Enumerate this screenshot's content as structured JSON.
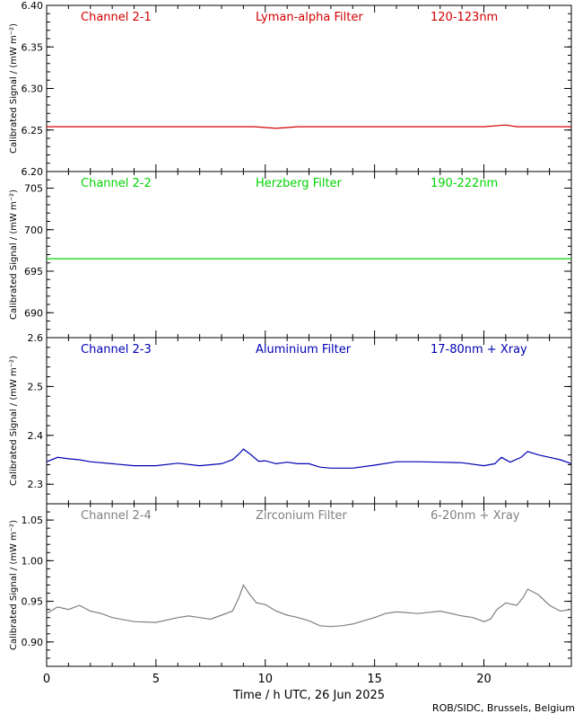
{
  "chart_data": [
    {
      "type": "line",
      "title": "Channel 2-1",
      "filter": "Lyman-alpha Filter",
      "band": "120-123nm",
      "color": "#d40000",
      "ylabel": "Calibrated Signal / (mW m⁻²)",
      "ylim": [
        6.2,
        6.4
      ],
      "yticks": [
        "6.20",
        "6.25",
        "6.30",
        "6.35",
        "6.40"
      ],
      "xlim": [
        0,
        24
      ],
      "x": [
        0,
        2,
        4,
        6,
        8,
        9.5,
        10,
        10.5,
        11,
        11.5,
        12,
        14,
        16,
        18,
        20,
        21,
        21.5,
        22,
        24
      ],
      "y": [
        6.254,
        6.254,
        6.254,
        6.254,
        6.254,
        6.254,
        6.253,
        6.252,
        6.253,
        6.254,
        6.254,
        6.254,
        6.254,
        6.254,
        6.254,
        6.256,
        6.254,
        6.254,
        6.254
      ]
    },
    {
      "type": "line",
      "title": "Channel 2-2",
      "filter": "Herzberg Filter",
      "band": "190-222nm",
      "color": "#00d400",
      "ylabel": "Calibrated Signal / (mW m⁻²)",
      "ylim": [
        687,
        707
      ],
      "yticks": [
        "690",
        "695",
        "700",
        "705"
      ],
      "xlim": [
        0,
        24
      ],
      "x": [
        0,
        24
      ],
      "y": [
        696.5,
        696.5
      ]
    },
    {
      "type": "line",
      "title": "Channel 2-3",
      "filter": "Aluminium Filter",
      "band": "17-80nm + Xray",
      "color": "#0000b4",
      "ylabel": "Calibrated Signal / (mW m⁻²)",
      "ylim": [
        2.26,
        2.6
      ],
      "yticks": [
        "2.3",
        "2.4",
        "2.5",
        "2.6"
      ],
      "xlim": [
        0,
        24
      ],
      "x": [
        0,
        0.5,
        1,
        1.5,
        2,
        3,
        4,
        5,
        6,
        7,
        8,
        8.5,
        8.8,
        9,
        9.3,
        9.7,
        10,
        10.5,
        11,
        11.5,
        12,
        12.5,
        13,
        14,
        15,
        16,
        17,
        18,
        19,
        20,
        20.5,
        20.8,
        21.2,
        21.7,
        22,
        22.5,
        23,
        23.5,
        24
      ],
      "y": [
        2.346,
        2.355,
        2.352,
        2.35,
        2.346,
        2.342,
        2.338,
        2.338,
        2.343,
        2.338,
        2.342,
        2.35,
        2.362,
        2.372,
        2.362,
        2.347,
        2.348,
        2.342,
        2.345,
        2.342,
        2.342,
        2.335,
        2.333,
        2.333,
        2.339,
        2.346,
        2.346,
        2.345,
        2.344,
        2.338,
        2.342,
        2.355,
        2.345,
        2.355,
        2.367,
        2.36,
        2.355,
        2.35,
        2.342
      ]
    },
    {
      "type": "line",
      "title": "Channel 2-4",
      "filter": "Zirconium Filter",
      "band": "6-20nm + Xray",
      "color": "#808080",
      "ylabel": "Calibrated Signal / (mW m⁻²)",
      "ylim": [
        0.87,
        1.07
      ],
      "yticks": [
        "0.90",
        "0.95",
        "1.00",
        "1.05"
      ],
      "xlim": [
        0,
        24
      ],
      "xticks": [
        "0",
        "5",
        "10",
        "15",
        "20"
      ],
      "xlabel": "Time / h UTC, 26 Jun 2025",
      "x": [
        0,
        0.5,
        1,
        1.5,
        2,
        2.5,
        3,
        4,
        5,
        6,
        6.5,
        7,
        7.5,
        8,
        8.5,
        8.8,
        9,
        9.3,
        9.6,
        10,
        10.5,
        11,
        11.5,
        12,
        12.5,
        13,
        13.5,
        14,
        14.5,
        15,
        15.5,
        16,
        17,
        18,
        19,
        19.5,
        20,
        20.3,
        20.6,
        21,
        21.5,
        21.8,
        22,
        22.5,
        23,
        23.5,
        24
      ],
      "y": [
        0.935,
        0.943,
        0.94,
        0.945,
        0.938,
        0.935,
        0.93,
        0.925,
        0.924,
        0.93,
        0.932,
        0.93,
        0.928,
        0.933,
        0.938,
        0.955,
        0.97,
        0.958,
        0.948,
        0.946,
        0.938,
        0.933,
        0.93,
        0.926,
        0.92,
        0.919,
        0.92,
        0.922,
        0.926,
        0.93,
        0.935,
        0.937,
        0.935,
        0.938,
        0.932,
        0.93,
        0.925,
        0.928,
        0.94,
        0.948,
        0.945,
        0.955,
        0.965,
        0.958,
        0.945,
        0.938,
        0.94
      ]
    }
  ],
  "footer": {
    "credit": "ROB/SIDC, Brussels, Belgium"
  }
}
